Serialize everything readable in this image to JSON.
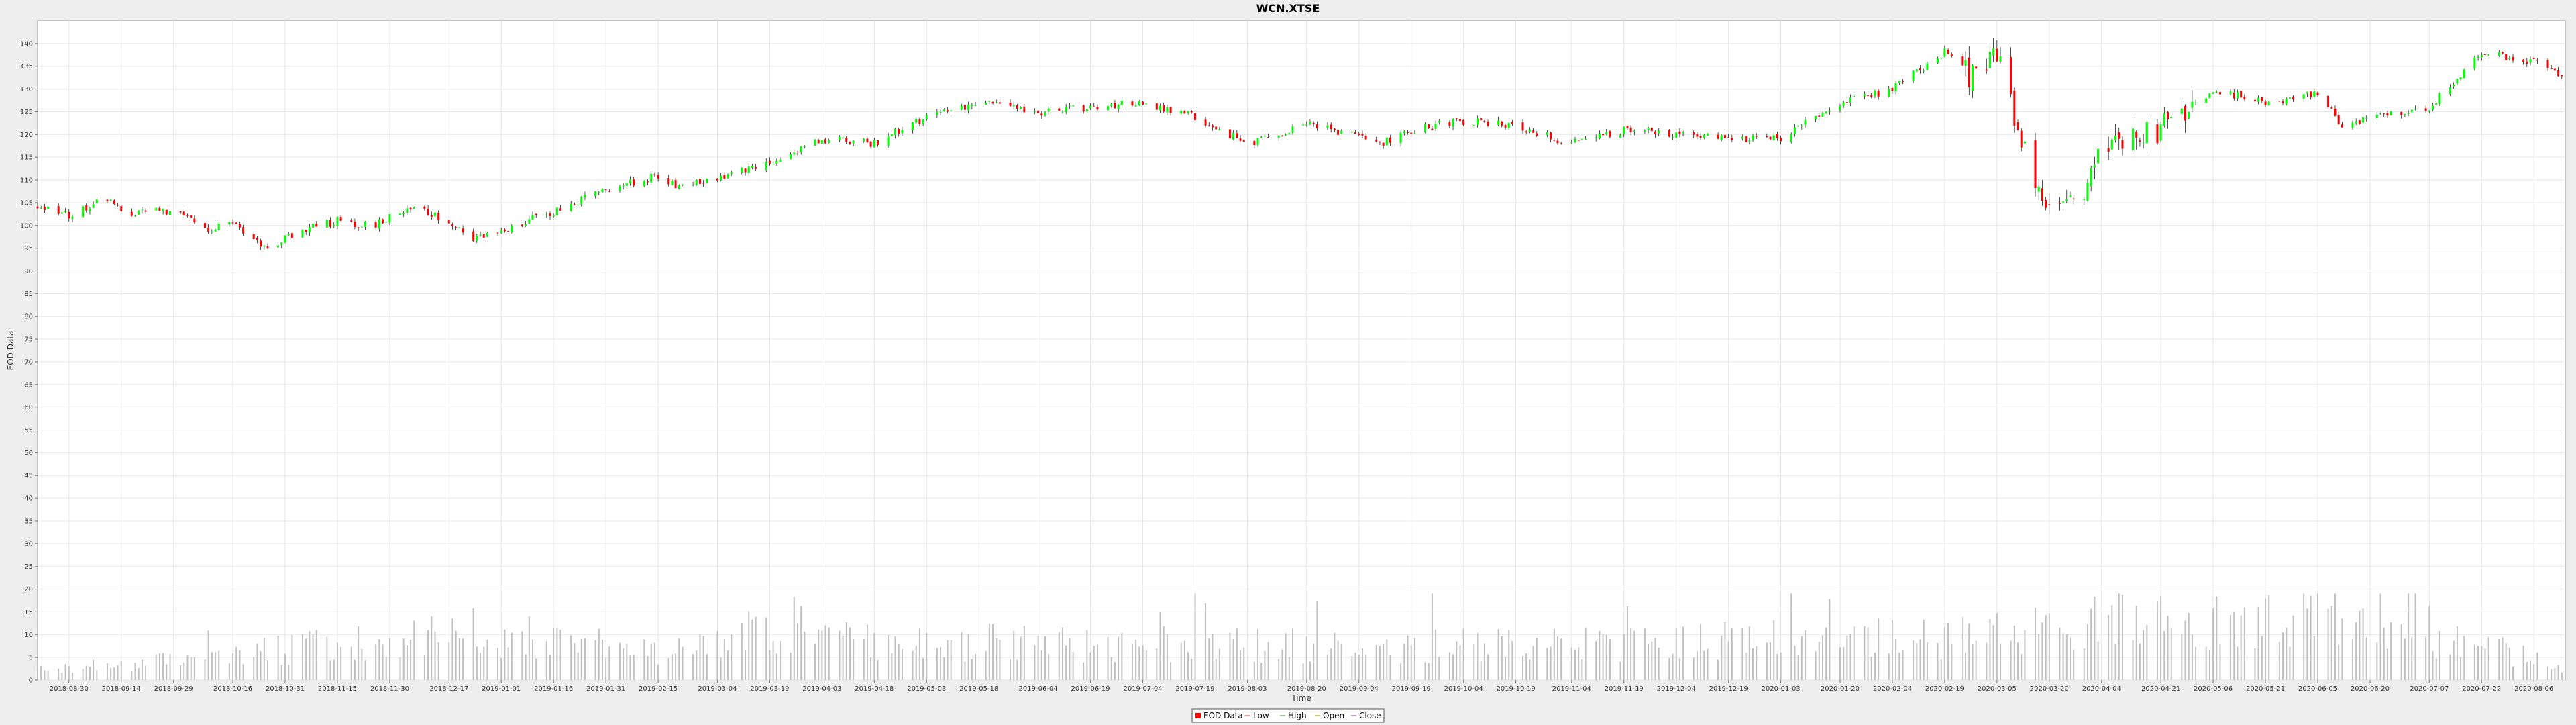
{
  "chart_data": {
    "type": "candlestick",
    "title": "WCN.XTSE",
    "xlabel": "Time",
    "ylabel": "EOD Data",
    "ylim": [
      0,
      145
    ],
    "yticks": [
      0,
      5,
      10,
      15,
      20,
      25,
      30,
      35,
      40,
      45,
      50,
      55,
      60,
      65,
      70,
      75,
      80,
      85,
      90,
      95,
      100,
      105,
      110,
      115,
      120,
      125,
      130,
      135,
      140
    ],
    "xlim": [
      "2018-08-21",
      "2020-08-15"
    ],
    "xticks": [
      "2018-08-30",
      "2018-09-14",
      "2018-09-29",
      "2018-10-16",
      "2018-10-31",
      "2018-11-15",
      "2018-11-30",
      "2018-12-17",
      "2019-01-01",
      "2019-01-16",
      "2019-01-31",
      "2019-02-15",
      "2019-03-04",
      "2019-03-19",
      "2019-04-03",
      "2019-04-18",
      "2019-05-03",
      "2019-05-18",
      "2019-06-04",
      "2019-06-19",
      "2019-07-04",
      "2019-07-19",
      "2019-08-03",
      "2019-08-20",
      "2019-09-04",
      "2019-09-19",
      "2019-10-04",
      "2019-10-19",
      "2019-11-04",
      "2019-11-19",
      "2019-12-04",
      "2019-12-19",
      "2020-01-03",
      "2020-01-20",
      "2020-02-04",
      "2020-02-19",
      "2020-03-05",
      "2020-03-20",
      "2020-04-04",
      "2020-04-21",
      "2020-05-06",
      "2020-05-21",
      "2020-06-05",
      "2020-06-20",
      "2020-07-07",
      "2020-07-22",
      "2020-08-06"
    ],
    "grid": true,
    "legend_position": "bottom-center",
    "legend": [
      "EOD Data",
      "Low",
      "High",
      "Open",
      "Close"
    ],
    "price_keypoints": [
      {
        "date": "2018-08-21",
        "close": 104
      },
      {
        "date": "2018-08-30",
        "close": 102
      },
      {
        "date": "2018-09-10",
        "close": 106
      },
      {
        "date": "2018-09-14",
        "close": 103
      },
      {
        "date": "2018-09-29",
        "close": 103
      },
      {
        "date": "2018-10-10",
        "close": 99
      },
      {
        "date": "2018-10-16",
        "close": 101
      },
      {
        "date": "2018-10-25",
        "close": 95
      },
      {
        "date": "2018-11-05",
        "close": 99
      },
      {
        "date": "2018-11-15",
        "close": 101
      },
      {
        "date": "2018-11-25",
        "close": 100
      },
      {
        "date": "2018-12-05",
        "close": 104
      },
      {
        "date": "2018-12-17",
        "close": 101
      },
      {
        "date": "2018-12-24",
        "close": 97
      },
      {
        "date": "2019-01-01",
        "close": 99
      },
      {
        "date": "2019-01-16",
        "close": 103
      },
      {
        "date": "2019-01-31",
        "close": 108
      },
      {
        "date": "2019-02-15",
        "close": 111
      },
      {
        "date": "2019-02-20",
        "close": 109
      },
      {
        "date": "2019-03-04",
        "close": 110
      },
      {
        "date": "2019-03-19",
        "close": 114
      },
      {
        "date": "2019-04-03",
        "close": 119
      },
      {
        "date": "2019-04-18",
        "close": 118
      },
      {
        "date": "2019-05-03",
        "close": 124
      },
      {
        "date": "2019-05-18",
        "close": 127
      },
      {
        "date": "2019-06-04",
        "close": 125
      },
      {
        "date": "2019-06-19",
        "close": 126
      },
      {
        "date": "2019-07-04",
        "close": 127
      },
      {
        "date": "2019-07-19",
        "close": 124
      },
      {
        "date": "2019-08-03",
        "close": 118
      },
      {
        "date": "2019-08-20",
        "close": 122
      },
      {
        "date": "2019-09-04",
        "close": 120
      },
      {
        "date": "2019-09-10",
        "close": 118
      },
      {
        "date": "2019-09-19",
        "close": 121
      },
      {
        "date": "2019-10-04",
        "close": 123
      },
      {
        "date": "2019-10-19",
        "close": 122
      },
      {
        "date": "2019-11-04",
        "close": 118
      },
      {
        "date": "2019-11-19",
        "close": 121
      },
      {
        "date": "2019-12-04",
        "close": 120
      },
      {
        "date": "2019-12-19",
        "close": 119
      },
      {
        "date": "2020-01-03",
        "close": 119
      },
      {
        "date": "2020-01-20",
        "close": 127
      },
      {
        "date": "2020-02-04",
        "close": 130
      },
      {
        "date": "2020-02-19",
        "close": 138
      },
      {
        "date": "2020-02-28",
        "close": 132
      },
      {
        "date": "2020-03-05",
        "close": 137
      },
      {
        "date": "2020-03-12",
        "close": 118
      },
      {
        "date": "2020-03-20",
        "close": 103
      },
      {
        "date": "2020-03-30",
        "close": 107
      },
      {
        "date": "2020-04-04",
        "close": 118
      },
      {
        "date": "2020-04-21",
        "close": 121
      },
      {
        "date": "2020-05-06",
        "close": 130
      },
      {
        "date": "2020-05-21",
        "close": 127
      },
      {
        "date": "2020-06-05",
        "close": 129
      },
      {
        "date": "2020-06-12",
        "close": 122
      },
      {
        "date": "2020-06-20",
        "close": 124
      },
      {
        "date": "2020-07-07",
        "close": 126
      },
      {
        "date": "2020-07-22",
        "close": 138
      },
      {
        "date": "2020-08-06",
        "close": 136
      },
      {
        "date": "2020-08-15",
        "close": 132
      }
    ],
    "volume_keypoints": [
      {
        "date": "2018-08-21",
        "value": 3
      },
      {
        "date": "2018-10-12",
        "value": 7
      },
      {
        "date": "2018-12-21",
        "value": 15
      },
      {
        "date": "2019-02-19",
        "value": 8
      },
      {
        "date": "2019-03-15",
        "value": 15
      },
      {
        "date": "2019-03-22",
        "value": 12
      },
      {
        "date": "2019-06-24",
        "value": 11
      },
      {
        "date": "2019-09-14",
        "value": 10
      },
      {
        "date": "2020-02-27",
        "value": 13
      },
      {
        "date": "2020-03-13",
        "value": 14
      },
      {
        "date": "2020-03-20",
        "value": 18
      },
      {
        "date": "2020-06-22",
        "value": 18
      },
      {
        "date": "2020-08-15",
        "value": 4
      }
    ],
    "colors": {
      "up": "#00ff00",
      "down": "#ff0000",
      "wick": "#000000",
      "volume": "#c0c0c0",
      "grid": "#e6e6e6",
      "plot_bg": "#ffffff",
      "page_bg": "#eeeeee",
      "legend_low": "#ff9999",
      "legend_high": "#99cc99",
      "legend_open": "#cccc66",
      "legend_close": "#cc99cc"
    }
  }
}
